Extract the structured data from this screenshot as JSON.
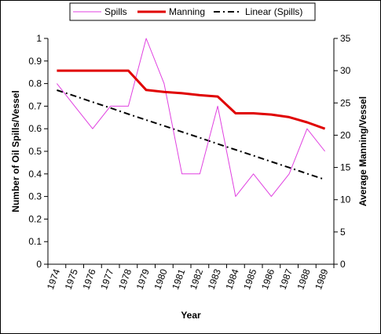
{
  "chart_data": {
    "type": "line",
    "categories": [
      "1974",
      "1975",
      "1976",
      "1977",
      "1978",
      "1979",
      "1980",
      "1981",
      "1982",
      "1983",
      "1984",
      "1985",
      "1986",
      "1987",
      "1988",
      "1989"
    ],
    "series": [
      {
        "name": "Spills",
        "axis": "left",
        "color": "#e040e0",
        "values": [
          0.8,
          0.7,
          0.6,
          0.7,
          0.7,
          1.0,
          0.8,
          0.4,
          0.4,
          0.7,
          0.3,
          0.4,
          0.3,
          0.4,
          0.6,
          0.5
        ]
      },
      {
        "name": "Manning",
        "axis": "right",
        "color": "#e00000",
        "values": [
          30,
          30,
          30,
          30,
          30,
          27,
          26.7,
          26.5,
          26.2,
          26,
          23.4,
          23.4,
          23.2,
          22.8,
          22,
          21
        ]
      },
      {
        "name": "Linear (Spills)",
        "axis": "left",
        "color": "#000000",
        "style": "dash-dot",
        "values": [
          0.771,
          0.745,
          0.718,
          0.692,
          0.665,
          0.639,
          0.613,
          0.586,
          0.56,
          0.533,
          0.507,
          0.481,
          0.454,
          0.428,
          0.401,
          0.375
        ]
      }
    ],
    "xlabel": "Year",
    "ylabel": "Number of Oil Spills/Vessel",
    "y2label": "Average Manning/Vessel",
    "ylim": [
      0,
      1
    ],
    "y2lim": [
      0,
      35
    ],
    "yticks": [
      "0",
      "0.1",
      "0.2",
      "0.3",
      "0.4",
      "0.5",
      "0.6",
      "0.7",
      "0.8",
      "0.9",
      "1"
    ],
    "y2ticks": [
      "0",
      "5",
      "10",
      "15",
      "20",
      "25",
      "30",
      "35"
    ],
    "grid": false,
    "legend": "top"
  }
}
